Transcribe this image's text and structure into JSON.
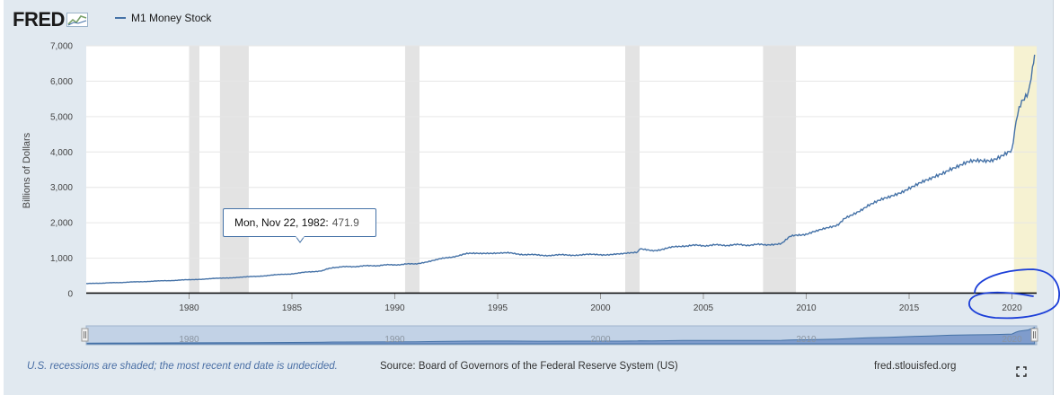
{
  "logo": {
    "text": "FRED"
  },
  "legend": {
    "label": "M1 Money Stock",
    "color": "#4572a7"
  },
  "y_axis_title": "Billions of Dollars",
  "tooltip": {
    "date": "Mon, Nov 22, 1982:",
    "value": "471.9"
  },
  "navigator": {
    "labels": [
      "1980",
      "1990",
      "2000",
      "2010",
      "2020"
    ]
  },
  "footer": {
    "note": "U.S. recessions are shaded; the most recent end date is undecided.",
    "source": "Source: Board of Governors of the Federal Reserve System (US)",
    "site": "fred.stlouisfed.org"
  },
  "icons": {
    "fullscreen": "fullscreen-icon",
    "logo_graph": "chart-trend-icon",
    "navigator_handle": "drag-handle-icon",
    "annotation": "hand-drawn-circle"
  },
  "chart_data": {
    "type": "line",
    "title": "",
    "ylabel": "Billions of Dollars",
    "xlim": [
      1975.0,
      2021.2
    ],
    "ylim": [
      0,
      7000
    ],
    "x_ticks": [
      1980,
      1985,
      1990,
      1995,
      2000,
      2005,
      2010,
      2015,
      2020
    ],
    "y_ticks": [
      0,
      1000,
      2000,
      3000,
      4000,
      5000,
      6000,
      7000
    ],
    "y_tick_labels": [
      "0",
      "1,000",
      "2,000",
      "3,000",
      "4,000",
      "5,000",
      "6,000",
      "7,000"
    ],
    "grid": "horizontal",
    "recessions": [
      [
        1980.0,
        1980.5
      ],
      [
        1981.5,
        1982.9
      ],
      [
        1990.5,
        1991.2
      ],
      [
        2001.2,
        2001.9
      ],
      [
        2007.9,
        2009.5
      ],
      [
        2020.1,
        2021.2
      ]
    ],
    "recession_color": "#e3e3e3",
    "current_recession_color": "#f6f2d2",
    "series": [
      {
        "name": "M1 Money Stock",
        "color": "#4572a7",
        "x": [
          1975.0,
          1977.0,
          1980.0,
          1982.9,
          1985.0,
          1986.5,
          1987.0,
          1989.0,
          1991.0,
          1992.0,
          1993.5,
          1994.5,
          1995.5,
          1997.0,
          1998.5,
          2001.0,
          2001.8,
          2001.9,
          2002.5,
          2004.0,
          2006.0,
          2008.0,
          2008.8,
          2009.2,
          2010.5,
          2011.5,
          2012.0,
          2013.0,
          2014.0,
          2015.0,
          2016.0,
          2017.0,
          2018.0,
          2019.0,
          2020.0,
          2020.2,
          2020.35,
          2020.6,
          2020.8,
          2021.0,
          2021.1
        ],
        "y": [
          280,
          320,
          390,
          471.9,
          560,
          650,
          740,
          790,
          840,
          950,
          1120,
          1150,
          1140,
          1080,
          1090,
          1110,
          1180,
          1250,
          1210,
          1350,
          1370,
          1380,
          1420,
          1600,
          1750,
          1950,
          2150,
          2500,
          2700,
          3000,
          3200,
          3550,
          3700,
          3800,
          4000,
          4800,
          5200,
          5500,
          5700,
          6400,
          6750
        ]
      }
    ],
    "tooltip_point": {
      "x": 1982.89,
      "y": 471.9
    }
  }
}
